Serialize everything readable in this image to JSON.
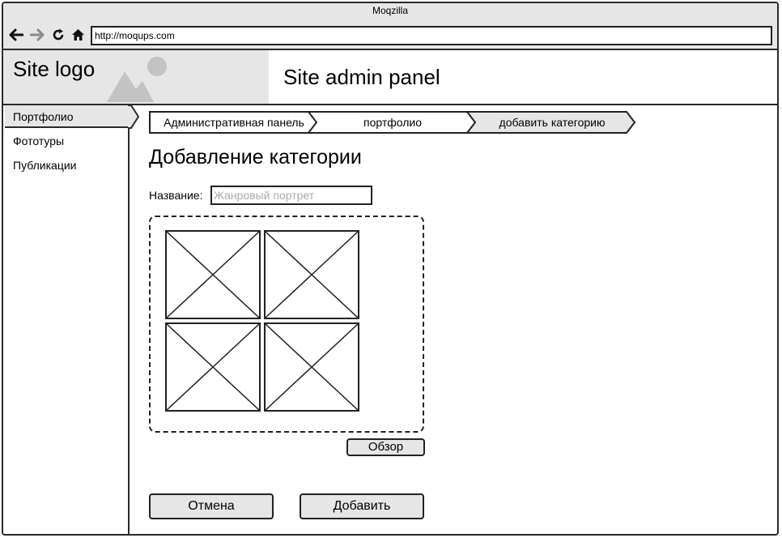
{
  "window": {
    "title": "Moqzilla"
  },
  "browser": {
    "url": "http://moqups.com",
    "back_icon": "arrow-left-icon",
    "forward_icon": "arrow-right-icon",
    "reload_icon": "reload-icon",
    "home_icon": "home-icon"
  },
  "header": {
    "logo_text": "Site logo",
    "logo_image_icon": "image-placeholder-icon",
    "title": "Site admin panel"
  },
  "sidebar": {
    "items": [
      {
        "label": "Портфолио",
        "active": true
      },
      {
        "label": "Фототуры",
        "active": false
      },
      {
        "label": "Публикации",
        "active": false
      }
    ]
  },
  "breadcrumbs": [
    {
      "label": "Административная панель"
    },
    {
      "label": "портфолио"
    },
    {
      "label": "добавить категорию",
      "active": true
    }
  ],
  "page": {
    "title": "Добавление категории",
    "name_label": "Название:",
    "name_placeholder": "Жанровый портрет",
    "name_value": ""
  },
  "uploads": {
    "thumbnail_icon": "image-placeholder-icon",
    "thumbnail_count": 4,
    "browse_label": "Обзор"
  },
  "actions": {
    "cancel_label": "Отмена",
    "add_label": "Добавить"
  },
  "colors": {
    "panel_gray": "#e6e6e6",
    "border": "#2a2a2a"
  }
}
